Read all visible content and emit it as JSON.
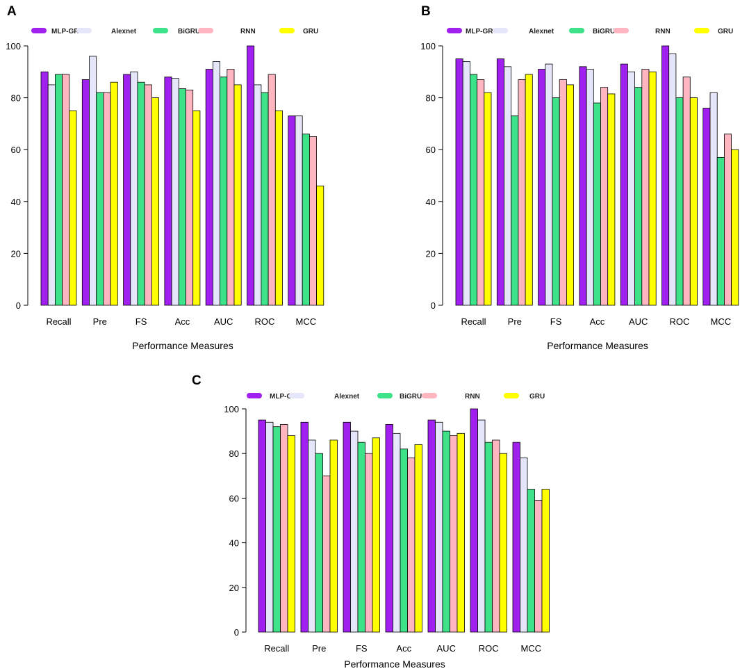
{
  "chart_data": [
    {
      "type": "bar",
      "panel_label": "A",
      "title": "",
      "xlabel": "Performance Measures",
      "ylabel": "",
      "ylim": [
        0,
        100
      ],
      "yticks": [
        0,
        20,
        40,
        60,
        80,
        100
      ],
      "grid": false,
      "legend_position": "top",
      "categories": [
        "Recall",
        "Pre",
        "FS",
        "Acc",
        "AUC",
        "ROC",
        "MCC"
      ],
      "series": [
        {
          "name": "MLP-GRU",
          "color": "#a020f0",
          "values": [
            90,
            87,
            89,
            88,
            91,
            100,
            73
          ]
        },
        {
          "name": "Alexnet",
          "color": "#e6e6fa",
          "values": [
            85,
            96,
            90,
            87.5,
            94,
            85,
            73
          ]
        },
        {
          "name": "BiGRU",
          "color": "#3ee389",
          "values": [
            89,
            82,
            86,
            83.5,
            88,
            82,
            66
          ]
        },
        {
          "name": "RNN",
          "color": "#ffb6c1",
          "values": [
            89,
            82,
            85,
            83,
            91,
            89,
            65
          ]
        },
        {
          "name": "GRU",
          "color": "#ffff00",
          "values": [
            75,
            86,
            80,
            75,
            85,
            75,
            46
          ]
        }
      ]
    },
    {
      "type": "bar",
      "panel_label": "B",
      "title": "",
      "xlabel": "Performance Measures",
      "ylabel": "",
      "ylim": [
        0,
        100
      ],
      "yticks": [
        0,
        20,
        40,
        60,
        80,
        100
      ],
      "grid": false,
      "legend_position": "top",
      "categories": [
        "Recall",
        "Pre",
        "FS",
        "Acc",
        "AUC",
        "ROC",
        "MCC"
      ],
      "series": [
        {
          "name": "MLP-GRU",
          "color": "#a020f0",
          "values": [
            95,
            95,
            91,
            92,
            93,
            100,
            76
          ]
        },
        {
          "name": "Alexnet",
          "color": "#e6e6fa",
          "values": [
            94,
            92,
            93,
            91,
            90,
            97,
            82
          ]
        },
        {
          "name": "BiGRU",
          "color": "#3ee389",
          "values": [
            89,
            73,
            80,
            78,
            84,
            80,
            57
          ]
        },
        {
          "name": "RNN",
          "color": "#ffb6c1",
          "values": [
            87,
            87,
            87,
            84,
            91,
            88,
            66
          ]
        },
        {
          "name": "GRU",
          "color": "#ffff00",
          "values": [
            82,
            89,
            85,
            81.5,
            90,
            80,
            60
          ]
        }
      ]
    },
    {
      "type": "bar",
      "panel_label": "C",
      "title": "",
      "xlabel": "Performance Measures",
      "ylabel": "",
      "ylim": [
        0,
        100
      ],
      "yticks": [
        0,
        20,
        40,
        60,
        80,
        100
      ],
      "grid": false,
      "legend_position": "top",
      "categories": [
        "Recall",
        "Pre",
        "FS",
        "Acc",
        "AUC",
        "ROC",
        "MCC"
      ],
      "series": [
        {
          "name": "MLP-GRU",
          "color": "#a020f0",
          "values": [
            95,
            94,
            94,
            93,
            95,
            100,
            85
          ]
        },
        {
          "name": "Alexnet",
          "color": "#e6e6fa",
          "values": [
            94,
            86,
            90,
            89,
            94,
            95,
            78
          ]
        },
        {
          "name": "BiGRU",
          "color": "#3ee389",
          "values": [
            92,
            80,
            85,
            82,
            90,
            85,
            64
          ]
        },
        {
          "name": "RNN",
          "color": "#ffb6c1",
          "values": [
            93,
            70,
            80,
            78,
            88,
            86,
            59
          ]
        },
        {
          "name": "GRU",
          "color": "#ffff00",
          "values": [
            88,
            86,
            87,
            84,
            89,
            80,
            64
          ]
        }
      ]
    }
  ]
}
